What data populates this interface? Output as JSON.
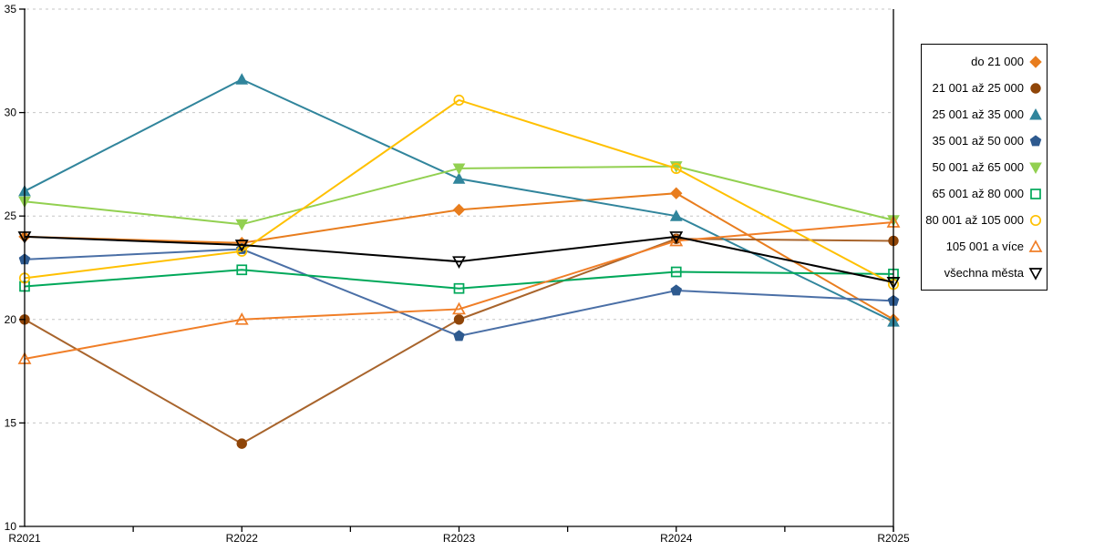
{
  "chart_data": {
    "type": "line",
    "title": "",
    "xlabel": "",
    "ylabel": "",
    "categories": [
      "R2021",
      "R2022",
      "R2023",
      "R2024",
      "R2025"
    ],
    "ylim": [
      10,
      35
    ],
    "yticks": [
      10,
      15,
      20,
      25,
      30,
      35
    ],
    "grid": "horizontal-dashed-gray",
    "gridline_color": "#C6C6C6",
    "legend_position": "right",
    "series": [
      {
        "id": "do-21-000",
        "name": "do 21 000",
        "color": "#E87D1E",
        "marker": "diamond",
        "fill": "filled",
        "values": [
          24.0,
          23.7,
          25.3,
          26.1,
          20.0
        ]
      },
      {
        "id": "21-001-az-25-000",
        "name": "21 001 až 25 000",
        "color": "#A8642C",
        "marker_color": "#8F4508",
        "marker": "circle",
        "fill": "filled",
        "values": [
          20.0,
          14.0,
          20.0,
          23.9,
          23.8
        ]
      },
      {
        "id": "25-001-az-35-000",
        "name": "25 001 až 35 000",
        "color": "#31859C",
        "marker": "triangle-up",
        "fill": "filled",
        "values": [
          26.2,
          31.6,
          26.8,
          25.0,
          19.9
        ]
      },
      {
        "id": "35-001-az-50-000",
        "name": "35 001 až 50 000",
        "color": "#4A6FA6",
        "marker_color": "#2E5A8F",
        "marker": "pentagon",
        "fill": "filled",
        "values": [
          22.9,
          23.4,
          19.2,
          21.4,
          20.9
        ]
      },
      {
        "id": "50-001-az-65-000",
        "name": "50 001 až 65 000",
        "color": "#92D050",
        "marker": "triangle-down",
        "fill": "filled",
        "values": [
          25.7,
          24.6,
          27.3,
          27.4,
          24.8
        ]
      },
      {
        "id": "65-001-az-80-000",
        "name": "65 001 až 80 000",
        "color": "#00A85A",
        "marker": "square",
        "fill": "hollow",
        "values": [
          21.6,
          22.4,
          21.5,
          22.3,
          22.2
        ]
      },
      {
        "id": "80-001-az-105-000",
        "name": "80 001 až 105 000",
        "color": "#FFC000",
        "marker": "circle",
        "fill": "hollow",
        "values": [
          22.0,
          23.3,
          30.6,
          27.3,
          21.7
        ]
      },
      {
        "id": "105-001-a-vice",
        "name": "105 001 a více",
        "color": "#F07E27",
        "marker": "triangle-up",
        "fill": "hollow",
        "values": [
          18.1,
          20.0,
          20.5,
          23.8,
          24.7
        ]
      },
      {
        "id": "vsechna-mesta",
        "name": "všechna města",
        "color": "#000000",
        "marker": "triangle-down",
        "fill": "hollow",
        "values": [
          24.0,
          23.6,
          22.8,
          24.0,
          21.8
        ]
      }
    ]
  }
}
